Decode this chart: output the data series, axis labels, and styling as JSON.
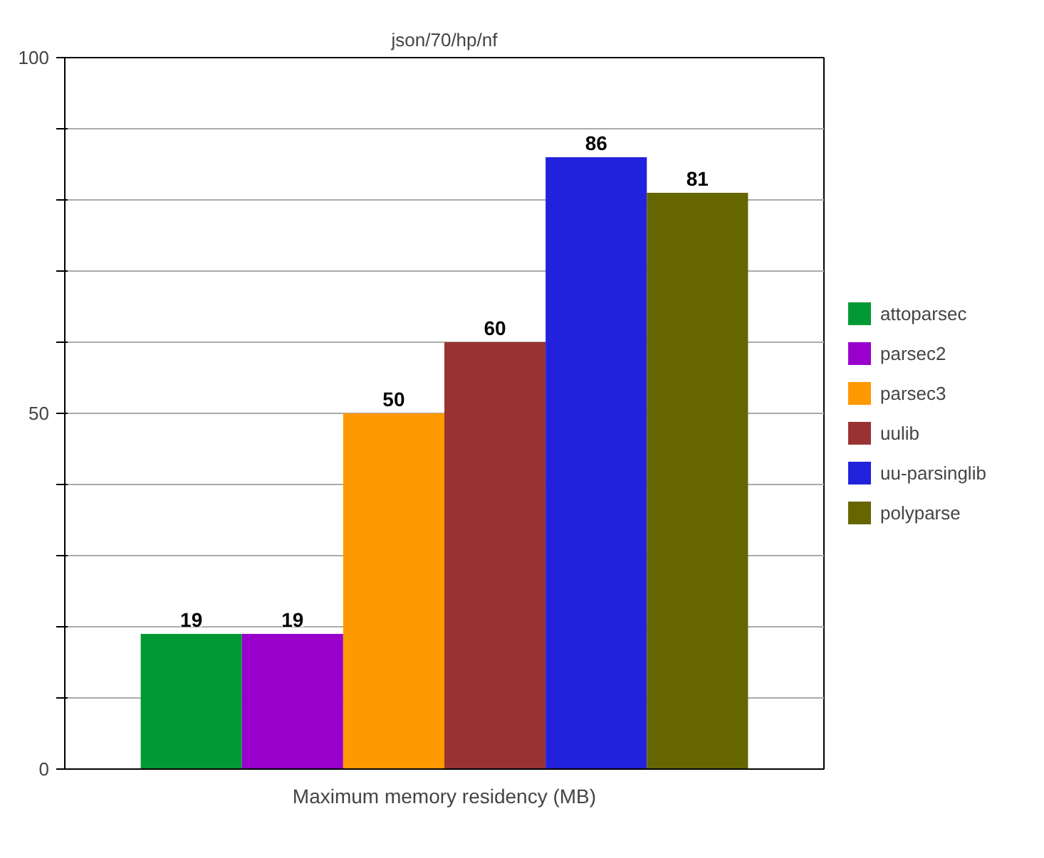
{
  "chart_data": {
    "type": "bar",
    "title": "json/70/hp/nf",
    "xlabel": "Maximum memory residency (MB)",
    "categories": [
      null
    ],
    "series": [
      {
        "name": "attoparsec",
        "color": "#009933",
        "values": [
          19
        ]
      },
      {
        "name": "parsec2",
        "color": "#9900cc",
        "values": [
          19
        ]
      },
      {
        "name": "parsec3",
        "color": "#ff9900",
        "values": [
          50
        ]
      },
      {
        "name": "uulib",
        "color": "#993333",
        "values": [
          60
        ]
      },
      {
        "name": "uu-parsinglib",
        "color": "#2222dd",
        "values": [
          86
        ]
      },
      {
        "name": "polyparse",
        "color": "#666600",
        "values": [
          81
        ]
      }
    ],
    "ylim": [
      0,
      100
    ],
    "yticks": [
      0,
      {
        "value": 10,
        "label": null
      },
      {
        "value": 20,
        "label": null
      },
      {
        "value": 30,
        "label": null
      },
      {
        "value": 40,
        "label": null
      },
      50,
      {
        "value": 60,
        "label": null
      },
      {
        "value": 70,
        "label": null
      },
      {
        "value": 80,
        "label": null
      },
      {
        "value": 90,
        "label": null
      },
      100
    ],
    "grid": "y",
    "legend": "right",
    "data_labels": true
  }
}
